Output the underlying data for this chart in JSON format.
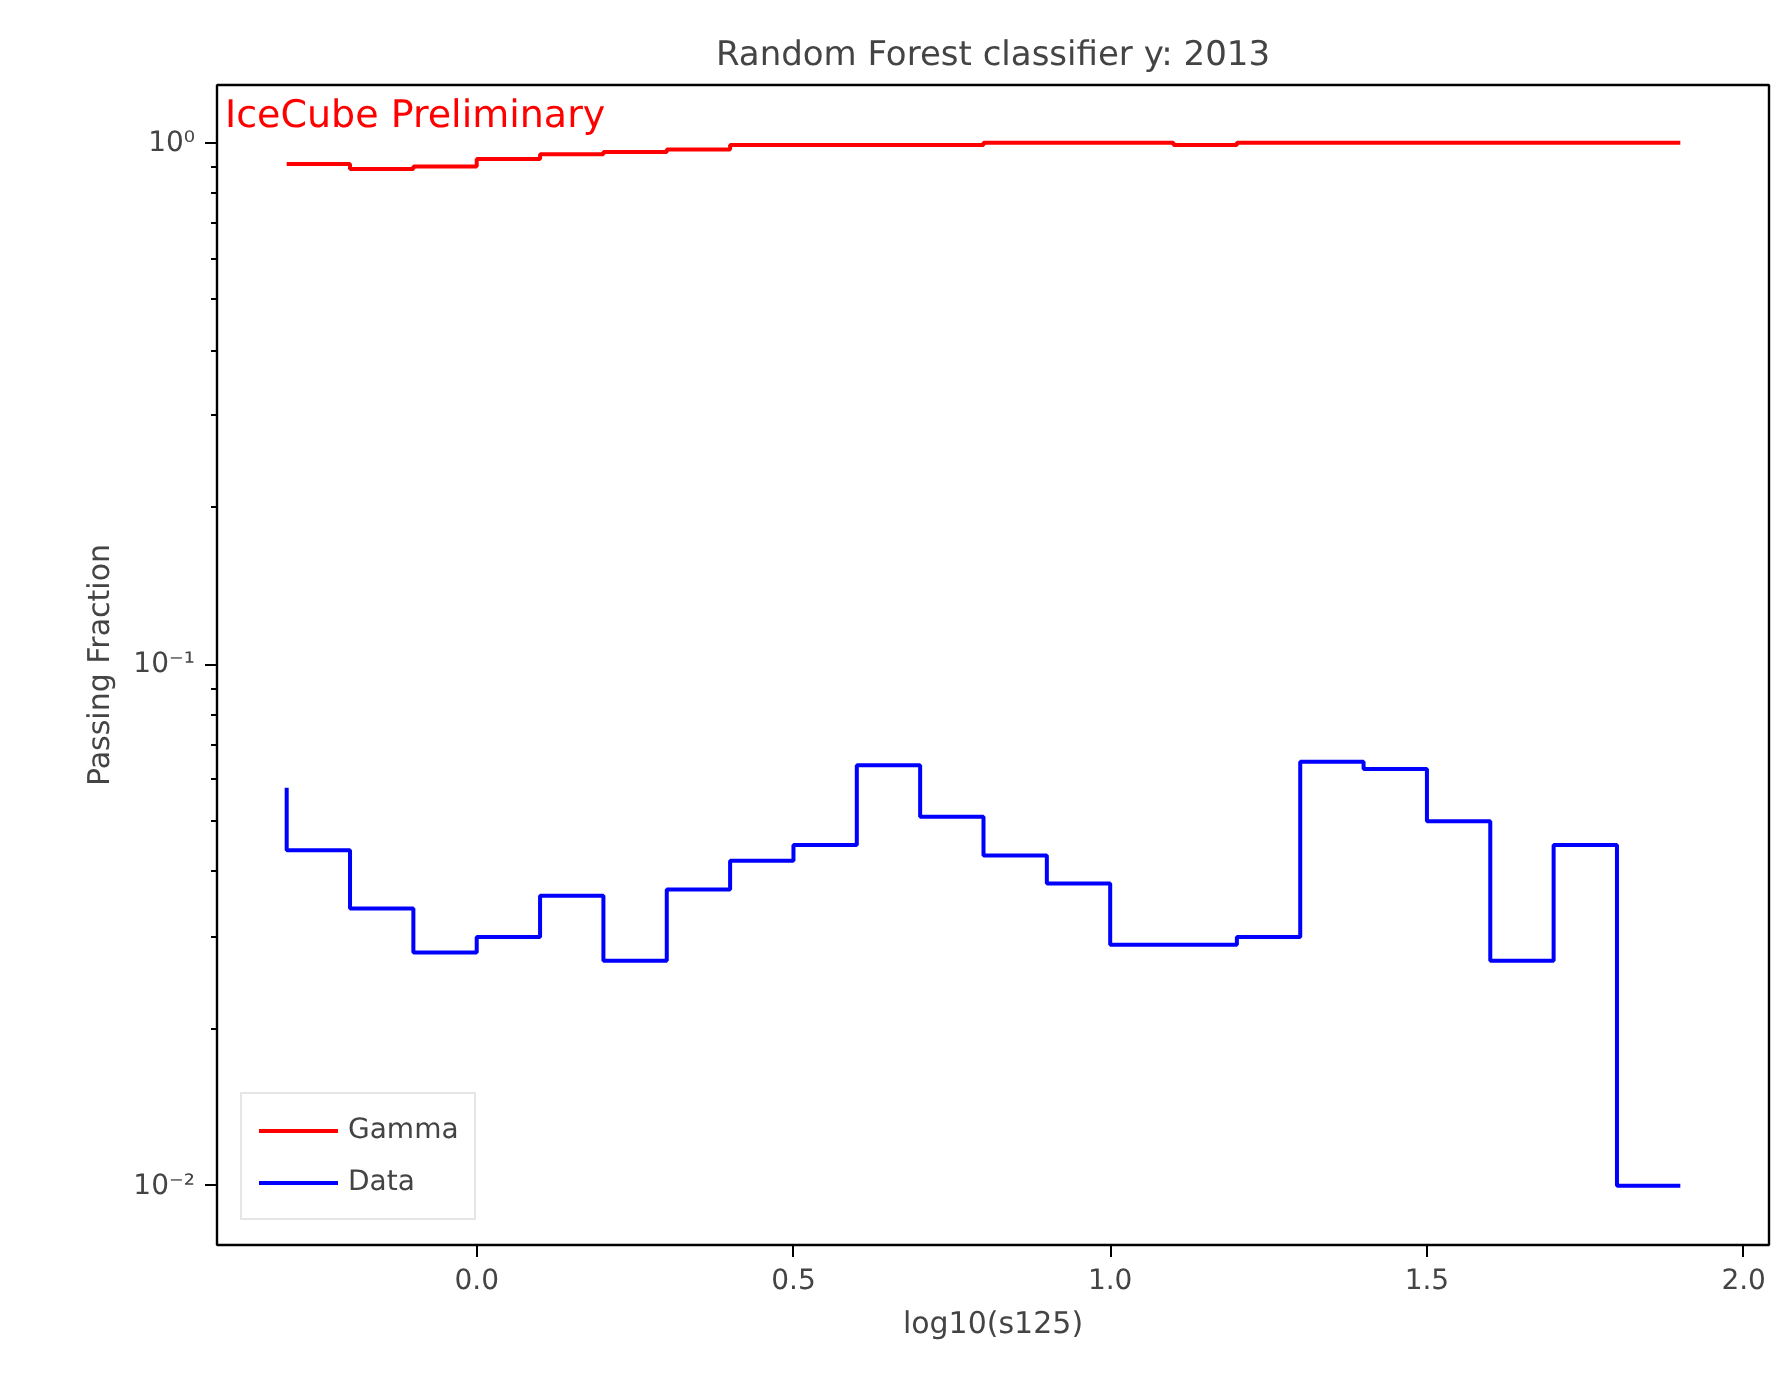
{
  "chart_data": {
    "type": "step",
    "title": "Random Forest classifier y: 2013",
    "xlabel": "log10(s125)",
    "ylabel": "Passing Fraction",
    "annotations": [
      "IceCube Preliminary"
    ],
    "x": [
      -0.3,
      -0.2,
      -0.1,
      0.0,
      0.1,
      0.2,
      0.3,
      0.4,
      0.5,
      0.6,
      0.7,
      0.8,
      0.9,
      1.0,
      1.1,
      1.2,
      1.3,
      1.4,
      1.5,
      1.6,
      1.7,
      1.8,
      1.9
    ],
    "series": [
      {
        "name": "Gamma",
        "color": "#ff0000",
        "values": [
          0.91,
          0.91,
          0.89,
          0.9,
          0.93,
          0.95,
          0.96,
          0.97,
          0.99,
          0.99,
          0.99,
          0.99,
          1.0,
          1.0,
          1.0,
          0.99,
          1.0,
          1.0,
          1.0,
          1.0,
          1.0,
          1.0,
          1.0
        ]
      },
      {
        "name": "Data",
        "color": "#0000ff",
        "values": [
          0.058,
          0.044,
          0.034,
          0.028,
          0.03,
          0.036,
          0.027,
          0.037,
          0.042,
          0.045,
          0.064,
          0.051,
          0.043,
          0.038,
          0.029,
          0.029,
          0.03,
          0.065,
          0.063,
          0.05,
          0.027,
          0.045,
          0.01
        ]
      }
    ],
    "xlim": [
      -0.41,
      2.04
    ],
    "ylim": [
      0.0077,
      1.29
    ],
    "xticks": [
      {
        "value": 0.0,
        "label": "0.0"
      },
      {
        "value": 0.5,
        "label": "0.5"
      },
      {
        "value": 1.0,
        "label": "1.0"
      },
      {
        "value": 1.5,
        "label": "1.5"
      },
      {
        "value": 2.0,
        "label": "2.0"
      }
    ],
    "yticks": [
      {
        "value": 0.01,
        "label": "10⁻²"
      },
      {
        "value": 0.1,
        "label": "10⁻¹"
      },
      {
        "value": 1,
        "label": "10⁰"
      }
    ],
    "log": "y",
    "legend": "bottom left",
    "grid": false,
    "line_style": "solid"
  }
}
